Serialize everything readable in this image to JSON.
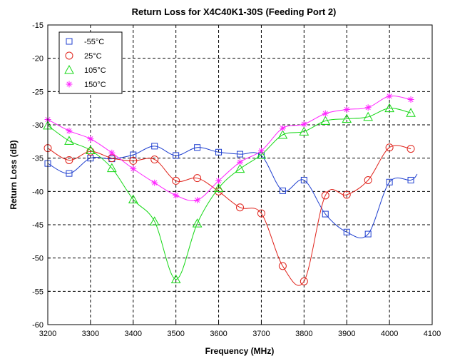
{
  "chart_data": {
    "type": "line",
    "title": "Return Loss for X4C40K1-30S (Feeding Port 2)",
    "xlabel": "Frequency (MHz)",
    "ylabel": "Return Loss (dB)",
    "xlim": [
      3200,
      4100
    ],
    "ylim": [
      -60,
      -15
    ],
    "xticks": [
      3200,
      3300,
      3400,
      3500,
      3600,
      3700,
      3800,
      3900,
      4000,
      4100
    ],
    "yticks": [
      -60,
      -55,
      -50,
      -45,
      -40,
      -35,
      -30,
      -25,
      -20,
      -15
    ],
    "grid": true,
    "legend_position": "top-left",
    "series": [
      {
        "name": "-55°C",
        "color": "#1f3fcf",
        "marker": "square",
        "x": [
          3200,
          3250,
          3300,
          3350,
          3400,
          3450,
          3500,
          3550,
          3600,
          3650,
          3700,
          3750,
          3800,
          3850,
          3900,
          3950,
          4000,
          4050
        ],
        "y": [
          -35.8,
          -37.3,
          -35.0,
          -35.1,
          -34.5,
          -33.2,
          -34.6,
          -33.4,
          -34.1,
          -34.4,
          -34.6,
          -39.9,
          -38.3,
          -43.4,
          -46.1,
          -46.4,
          -38.6,
          -38.3
        ],
        "curve_y": [
          -35.8,
          -37.3,
          -35.0,
          -35.1,
          -34.5,
          -33.2,
          -34.6,
          -33.4,
          -34.1,
          -34.4,
          -34.6,
          -39.9,
          -38.3,
          -43.4,
          -46.1,
          -46.4,
          -38.6,
          -38.3,
          -37.4
        ],
        "curve_x": [
          3200,
          3250,
          3300,
          3350,
          3400,
          3450,
          3500,
          3550,
          3600,
          3650,
          3700,
          3750,
          3800,
          3850,
          3900,
          3950,
          4000,
          4050,
          4065
        ]
      },
      {
        "name": "25°C",
        "color": "#e0231b",
        "marker": "circle",
        "x": [
          3200,
          3250,
          3300,
          3350,
          3400,
          3450,
          3500,
          3550,
          3600,
          3650,
          3700,
          3750,
          3800,
          3850,
          3900,
          3950,
          4000,
          4050
        ],
        "y": [
          -33.5,
          -35.3,
          -34.0,
          -35.0,
          -35.4,
          -35.2,
          -38.4,
          -38.0,
          -40.0,
          -42.4,
          -43.3,
          -51.2,
          -53.5,
          -40.6,
          -40.5,
          -38.3,
          -33.4,
          -33.6
        ],
        "curve_y": [
          -33.5,
          -35.3,
          -34.0,
          -35.0,
          -35.4,
          -35.2,
          -38.4,
          -38.0,
          -40.0,
          -42.4,
          -43.3,
          -51.2,
          -53.5,
          -40.6,
          -40.5,
          -38.3,
          -33.4,
          -33.6
        ],
        "curve_x": [
          3200,
          3250,
          3300,
          3350,
          3400,
          3450,
          3500,
          3550,
          3600,
          3650,
          3700,
          3750,
          3800,
          3850,
          3900,
          3950,
          4000,
          4050
        ]
      },
      {
        "name": "105°C",
        "color": "#16d816",
        "marker": "triangle",
        "x": [
          3200,
          3250,
          3300,
          3350,
          3400,
          3450,
          3500,
          3550,
          3600,
          3650,
          3700,
          3750,
          3800,
          3850,
          3900,
          3950,
          4000,
          4050
        ],
        "y": [
          -30.1,
          -32.4,
          -33.8,
          -36.5,
          -41.2,
          -44.5,
          -53.2,
          -44.8,
          -39.5,
          -36.6,
          -34.5,
          -31.5,
          -31.0,
          -29.4,
          -29.1,
          -28.8,
          -27.5,
          -28.2
        ],
        "curve_y": [
          -30.1,
          -32.4,
          -33.8,
          -36.5,
          -41.2,
          -44.5,
          -53.2,
          -44.8,
          -39.5,
          -36.6,
          -34.5,
          -31.5,
          -31.0,
          -29.4,
          -29.1,
          -28.8,
          -27.5,
          -28.2
        ],
        "curve_x": [
          3200,
          3250,
          3300,
          3350,
          3400,
          3450,
          3500,
          3550,
          3600,
          3650,
          3700,
          3750,
          3800,
          3850,
          3900,
          3950,
          4000,
          4050
        ]
      },
      {
        "name": "150°C",
        "color": "#ff22ff",
        "marker": "asterisk",
        "x": [
          3200,
          3250,
          3300,
          3350,
          3400,
          3450,
          3500,
          3550,
          3600,
          3650,
          3700,
          3750,
          3800,
          3850,
          3900,
          3950,
          4000,
          4050
        ],
        "y": [
          -29.2,
          -30.9,
          -32.1,
          -34.2,
          -36.6,
          -38.7,
          -40.6,
          -41.3,
          -38.4,
          -35.6,
          -33.9,
          -30.5,
          -29.9,
          -28.3,
          -27.7,
          -27.4,
          -25.7,
          -26.2
        ],
        "curve_y": [
          -29.2,
          -30.9,
          -32.1,
          -34.2,
          -36.6,
          -38.7,
          -40.6,
          -41.3,
          -38.4,
          -35.6,
          -33.9,
          -30.5,
          -29.9,
          -28.3,
          -27.7,
          -27.4,
          -25.7,
          -26.2
        ],
        "curve_x": [
          3200,
          3250,
          3300,
          3350,
          3400,
          3450,
          3500,
          3550,
          3600,
          3650,
          3700,
          3750,
          3800,
          3850,
          3900,
          3950,
          4000,
          4050
        ]
      }
    ]
  }
}
